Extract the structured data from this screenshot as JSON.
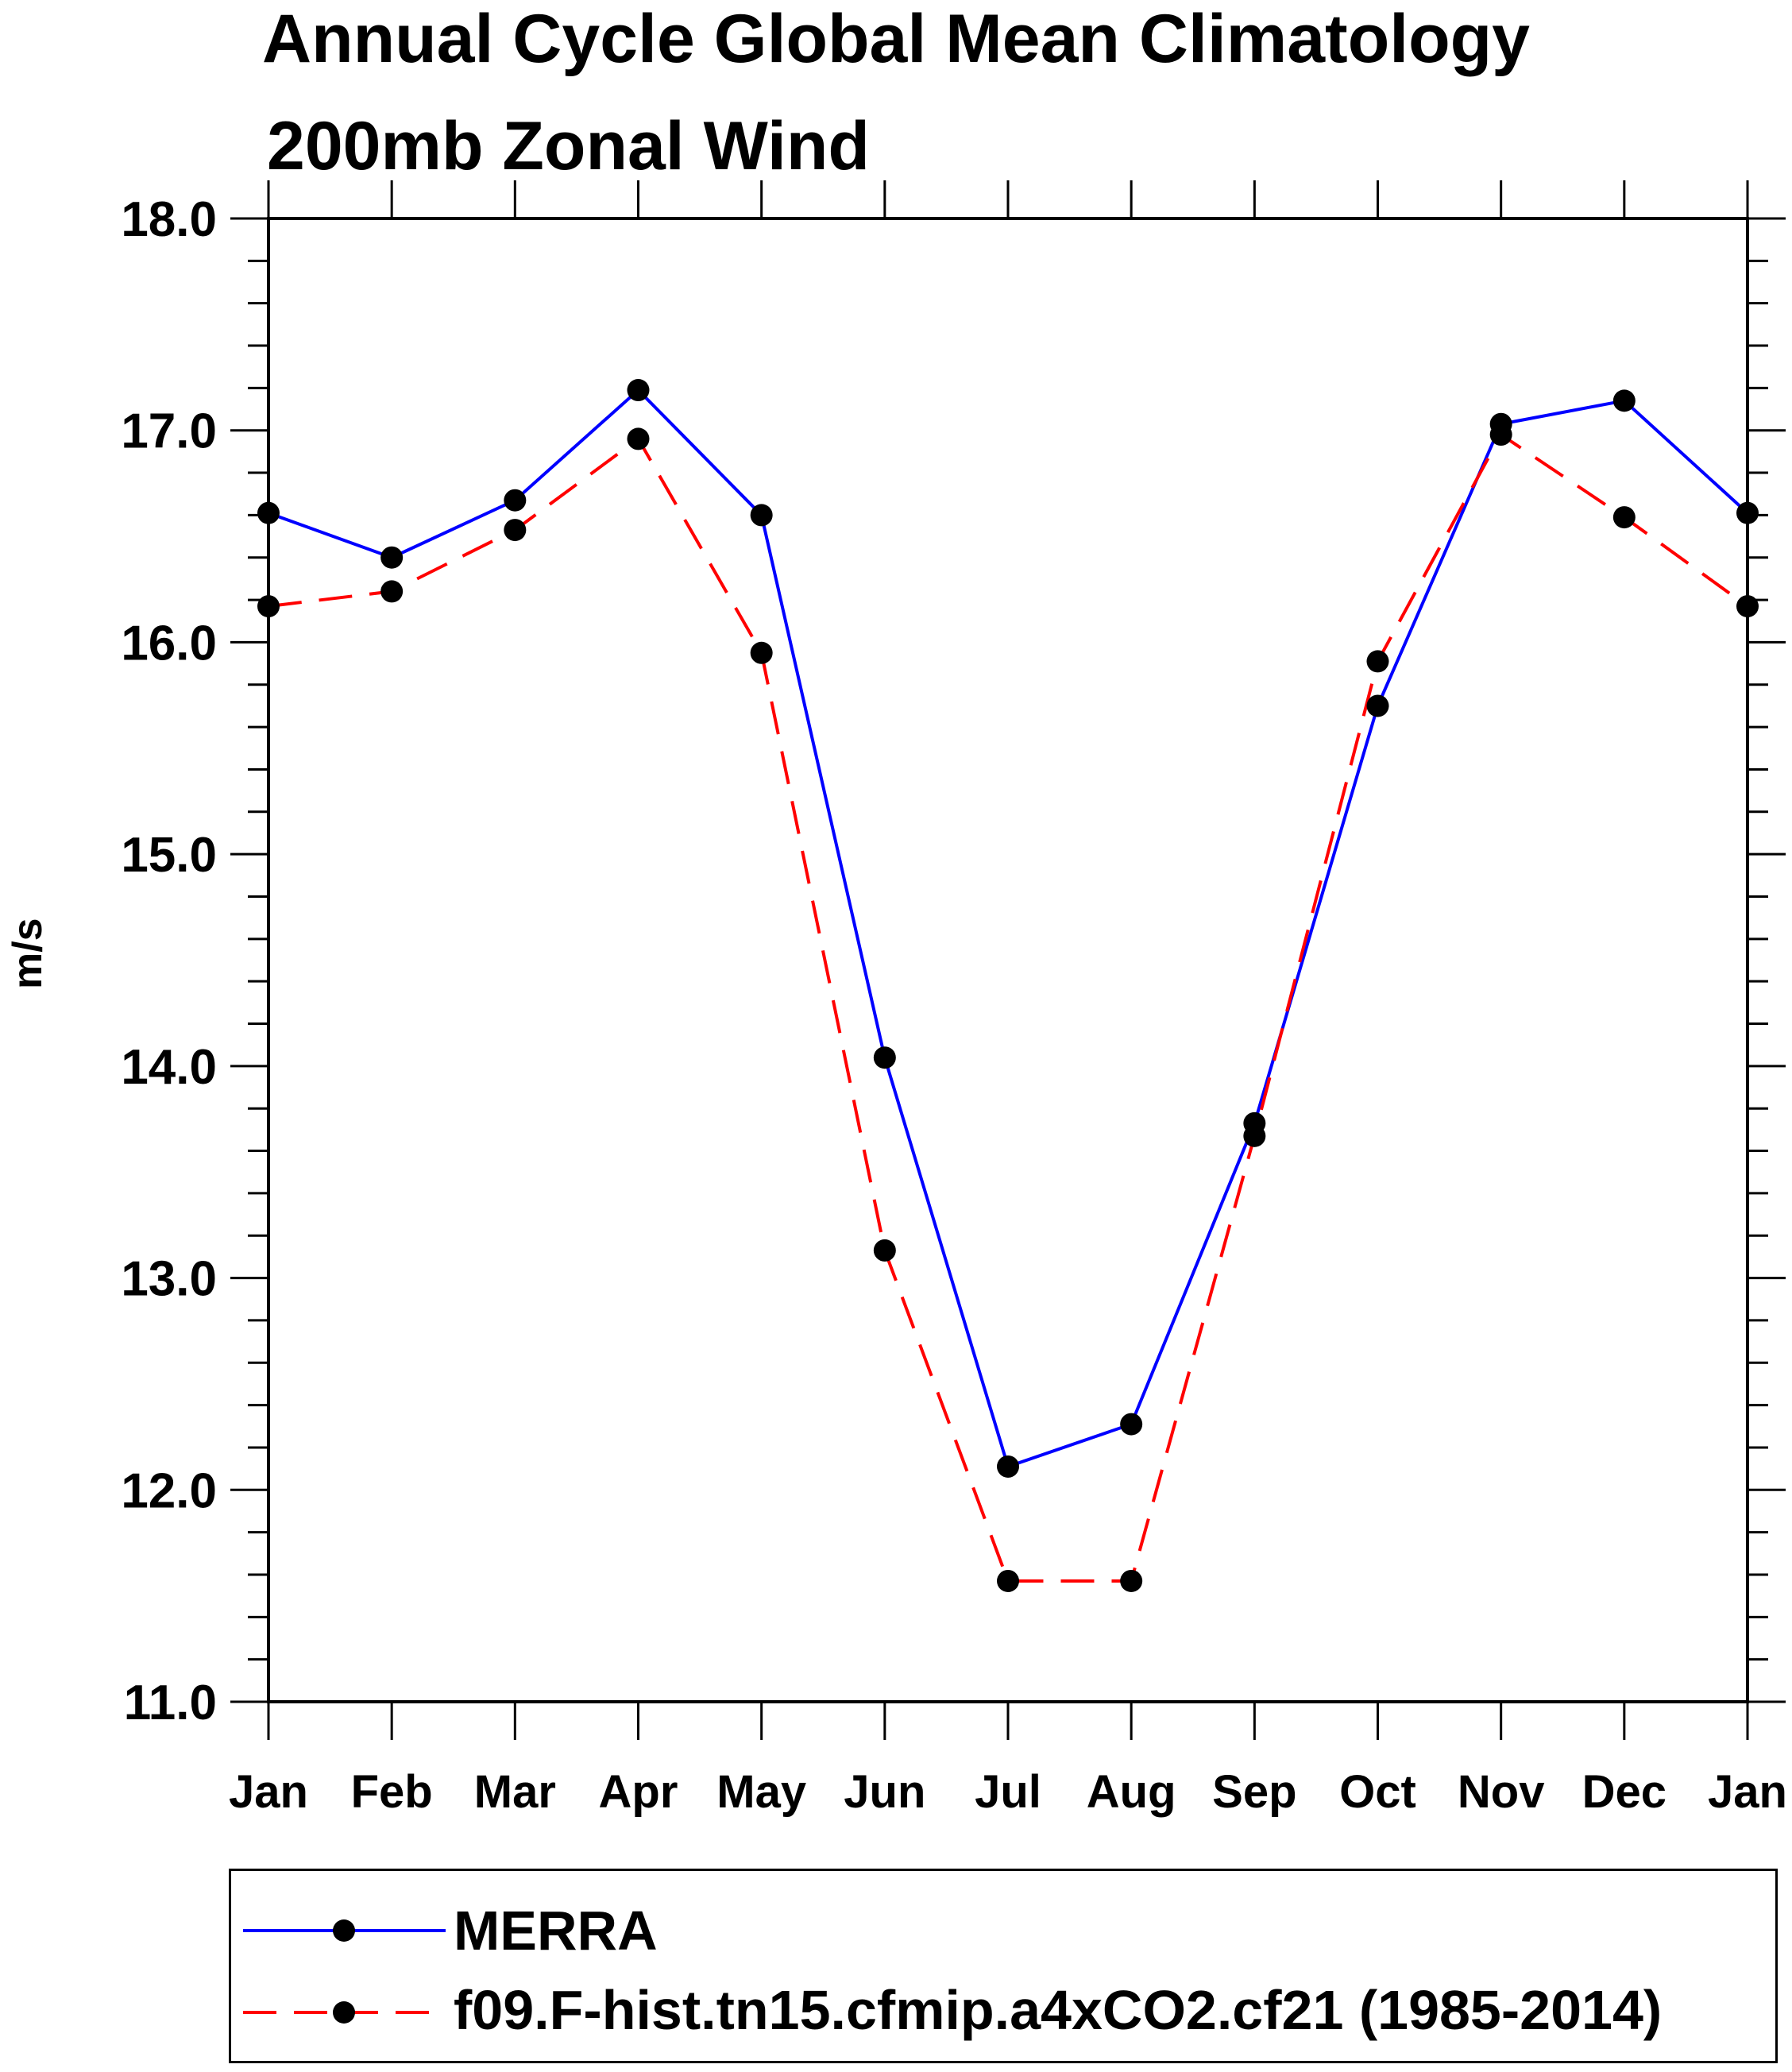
{
  "chart_data": {
    "type": "line",
    "title": "Annual Cycle Global Mean Climatology",
    "subtitle": "200mb Zonal Wind",
    "ylabel": "m/s",
    "xlabel": "",
    "categories": [
      "Jan",
      "Feb",
      "Mar",
      "Apr",
      "May",
      "Jun",
      "Jul",
      "Aug",
      "Sep",
      "Oct",
      "Nov",
      "Dec",
      "Jan"
    ],
    "ylim": [
      11.0,
      18.0
    ],
    "yticks": [
      "11.0",
      "12.0",
      "13.0",
      "14.0",
      "15.0",
      "16.0",
      "17.0",
      "18.0"
    ],
    "grid": false,
    "legend_position": "bottom",
    "series": [
      {
        "name": "MERRA",
        "color": "#0000ff",
        "style": "solid",
        "values": [
          16.61,
          16.4,
          16.67,
          17.19,
          16.6,
          14.04,
          12.11,
          12.31,
          13.73,
          15.7,
          17.03,
          17.14,
          16.61
        ]
      },
      {
        "name": "f09.F-hist.tn15.cfmip.a4xCO2.cf21 (1985-2014)",
        "color": "#ff0000",
        "style": "dashed",
        "values": [
          16.17,
          16.24,
          16.53,
          16.96,
          15.95,
          13.13,
          11.57,
          11.57,
          13.67,
          15.91,
          16.98,
          16.59,
          16.17
        ]
      }
    ],
    "marker_color": "#000000"
  }
}
